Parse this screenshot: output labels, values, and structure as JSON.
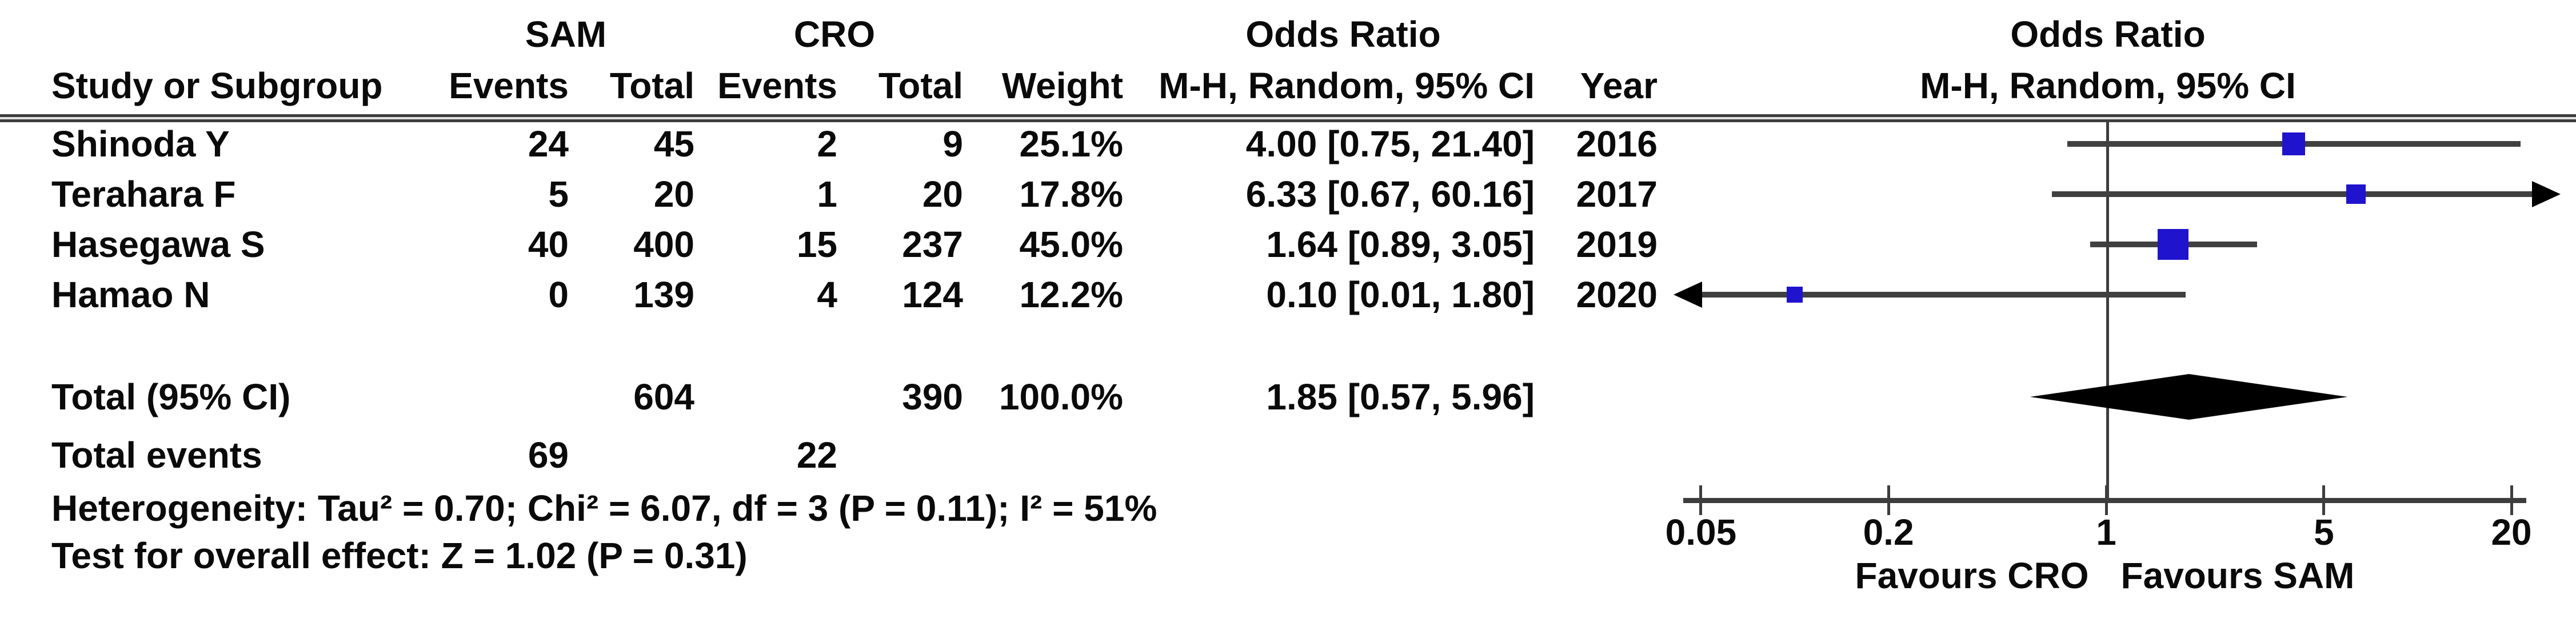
{
  "header": {
    "group_sam": "SAM",
    "group_cro": "CRO",
    "or_title_left": "Odds Ratio",
    "or_title_right": "Odds Ratio",
    "col_study": "Study or Subgroup",
    "col_events_sam": "Events",
    "col_total_sam": "Total",
    "col_events_cro": "Events",
    "col_total_cro": "Total",
    "col_weight": "Weight",
    "col_mh_left": "M-H, Random, 95% CI",
    "col_year": "Year",
    "col_mh_right": "M-H, Random, 95% CI"
  },
  "rows": [
    {
      "study": "Shinoda Y",
      "sam_events": "24",
      "sam_total": "45",
      "cro_events": "2",
      "cro_total": "9",
      "weight": "25.1%",
      "or_ci": "4.00 [0.75, 21.40]",
      "year": "2016"
    },
    {
      "study": "Terahara F",
      "sam_events": "5",
      "sam_total": "20",
      "cro_events": "1",
      "cro_total": "20",
      "weight": "17.8%",
      "or_ci": "6.33 [0.67, 60.16]",
      "year": "2017"
    },
    {
      "study": "Hasegawa S",
      "sam_events": "40",
      "sam_total": "400",
      "cro_events": "15",
      "cro_total": "237",
      "weight": "45.0%",
      "or_ci": "1.64 [0.89, 3.05]",
      "year": "2019"
    },
    {
      "study": "Hamao N",
      "sam_events": "0",
      "sam_total": "139",
      "cro_events": "4",
      "cro_total": "124",
      "weight": "12.2%",
      "or_ci": "0.10 [0.01, 1.80]",
      "year": "2020"
    }
  ],
  "totals": {
    "label": "Total (95% CI)",
    "sam_total": "604",
    "cro_total": "390",
    "weight": "100.0%",
    "or_ci": "1.85 [0.57, 5.96]"
  },
  "total_events": {
    "label": "Total events",
    "sam": "69",
    "cro": "22"
  },
  "heterogeneity": "Heterogeneity: Tau² = 0.70; Chi² = 6.07, df = 3 (P = 0.11); I² = 51%",
  "overall_effect": "Test for overall effect: Z = 1.02 (P = 0.31)",
  "axis": {
    "tick_labels": [
      "0.05",
      "0.2",
      "1",
      "5",
      "20"
    ],
    "favours_left": "Favours CRO",
    "favours_right": "Favours SAM"
  },
  "colors": {
    "square_blue": "#2013cd",
    "line_gray": "#404040",
    "diamond_black": "#000000",
    "text_black": "#0a0a0a"
  },
  "chart_data": {
    "type": "forest",
    "effect_measure": "Odds Ratio, M-H, Random, 95% CI",
    "x_scale": "log",
    "x_ticks": [
      0.05,
      0.2,
      1,
      5,
      20
    ],
    "x_range_displayed": [
      0.05,
      20
    ],
    "null_line": 1,
    "studies": [
      {
        "name": "Shinoda Y",
        "or": 4.0,
        "ci_low": 0.75,
        "ci_high": 21.4,
        "weight_pct": 25.1,
        "year": 2016
      },
      {
        "name": "Terahara F",
        "or": 6.33,
        "ci_low": 0.67,
        "ci_high": 60.16,
        "weight_pct": 17.8,
        "year": 2017
      },
      {
        "name": "Hasegawa S",
        "or": 1.64,
        "ci_low": 0.89,
        "ci_high": 3.05,
        "weight_pct": 45.0,
        "year": 2019
      },
      {
        "name": "Hamao N",
        "or": 0.1,
        "ci_low": 0.01,
        "ci_high": 1.8,
        "weight_pct": 12.2,
        "year": 2020
      }
    ],
    "total": {
      "or": 1.85,
      "ci_low": 0.57,
      "ci_high": 5.96,
      "weight_pct": 100.0
    },
    "favours": [
      "Favours CRO",
      "Favours SAM"
    ]
  }
}
